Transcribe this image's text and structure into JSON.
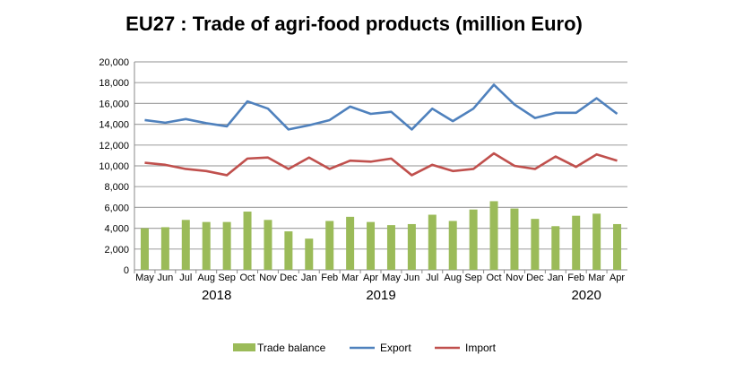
{
  "chart_data": {
    "type": "bar+line",
    "title": "EU27 : Trade of agri-food products (million Euro)",
    "categories": [
      "May",
      "Jun",
      "Jul",
      "Aug",
      "Sep",
      "Oct",
      "Nov",
      "Dec",
      "Jan",
      "Feb",
      "Mar",
      "Apr",
      "May",
      "Jun",
      "Jul",
      "Aug",
      "Sep",
      "Oct",
      "Nov",
      "Dec",
      "Jan",
      "Feb",
      "Mar",
      "Apr"
    ],
    "years": [
      {
        "label": "2018",
        "center_index": 3.5
      },
      {
        "label": "2019",
        "center_index": 11.5
      },
      {
        "label": "2020",
        "center_index": 21.5
      }
    ],
    "ylim": [
      0,
      20000
    ],
    "yticks": [
      "0",
      "2,000",
      "4,000",
      "6,000",
      "8,000",
      "10,000",
      "12,000",
      "14,000",
      "16,000",
      "18,000",
      "20,000"
    ],
    "grid": true,
    "legend_position": "bottom",
    "series": [
      {
        "name": "Trade balance",
        "type": "bar",
        "color": "#9bbb59",
        "values": [
          4000,
          4100,
          4800,
          4600,
          4600,
          5600,
          4800,
          3700,
          3000,
          4700,
          5100,
          4600,
          4300,
          4400,
          5300,
          4700,
          5800,
          6600,
          5900,
          4900,
          4200,
          5200,
          5400,
          4400
        ]
      },
      {
        "name": "Export",
        "type": "line",
        "color": "#4f81bd",
        "values": [
          14400,
          14150,
          14500,
          14100,
          13800,
          16200,
          15500,
          13500,
          13900,
          14400,
          15700,
          15000,
          15200,
          13500,
          15500,
          14300,
          15500,
          17800,
          15900,
          14600,
          15100,
          15100,
          16500,
          15000
        ]
      },
      {
        "name": "Import",
        "type": "line",
        "color": "#c0504d",
        "values": [
          10300,
          10100,
          9700,
          9500,
          9100,
          10700,
          10800,
          9700,
          10800,
          9700,
          10500,
          10400,
          10700,
          9100,
          10100,
          9500,
          9700,
          11200,
          10000,
          9700,
          10900,
          9900,
          11100,
          10500
        ]
      }
    ]
  }
}
